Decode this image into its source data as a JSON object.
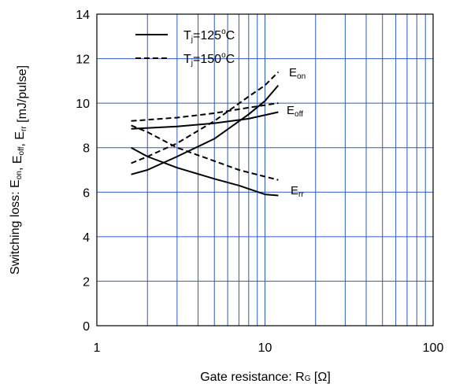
{
  "chart_data": {
    "type": "line",
    "xlabel": {
      "main": "Gate resistance: R",
      "sub": "G",
      "tail": " [Ω]"
    },
    "ylabel": {
      "parts": [
        {
          "t": "Switching loss: E",
          "s": "on"
        },
        {
          "t": ", E",
          "s": "off"
        },
        {
          "t": ", E",
          "s": "rr"
        },
        {
          "t": " [mJ/pulse]",
          "s": ""
        }
      ]
    },
    "x_scale": "log",
    "xlim": [
      1,
      100
    ],
    "ylim": [
      0,
      14
    ],
    "x_ticks": [
      "1",
      "10",
      "100"
    ],
    "y_ticks": [
      "0",
      "2",
      "4",
      "6",
      "8",
      "10",
      "12",
      "14"
    ],
    "grid": true,
    "grid_color": "#2d5bbf",
    "legend": [
      {
        "style": "solid",
        "prefix": "T",
        "sub": "j",
        "text": "=125",
        "sup": "o",
        "unit": "C"
      },
      {
        "style": "dashed",
        "prefix": "T",
        "sub": "j",
        "text": "=150",
        "sup": "o",
        "unit": "C"
      }
    ],
    "curve_labels": [
      {
        "main": "E",
        "sub": "on"
      },
      {
        "main": "E",
        "sub": "off"
      },
      {
        "main": "E",
        "sub": "rr"
      }
    ],
    "series": [
      {
        "quantity": "Eon",
        "tj": "125",
        "style": "solid",
        "x": [
          1.6,
          2,
          3,
          5,
          8,
          10,
          12
        ],
        "y": [
          6.8,
          7.0,
          7.6,
          8.4,
          9.5,
          10.1,
          10.8
        ]
      },
      {
        "quantity": "Eon",
        "tj": "150",
        "style": "dashed",
        "x": [
          1.6,
          2,
          3,
          5,
          8,
          10,
          12
        ],
        "y": [
          7.3,
          7.6,
          8.2,
          9.2,
          10.3,
          10.8,
          11.4
        ]
      },
      {
        "quantity": "Eoff",
        "tj": "125",
        "style": "solid",
        "x": [
          1.6,
          3,
          5,
          8,
          12
        ],
        "y": [
          8.85,
          8.95,
          9.1,
          9.3,
          9.6
        ]
      },
      {
        "quantity": "Eoff",
        "tj": "150",
        "style": "dashed",
        "x": [
          1.6,
          3,
          5,
          8,
          12
        ],
        "y": [
          9.2,
          9.35,
          9.55,
          9.8,
          10.0
        ]
      },
      {
        "quantity": "Err",
        "tj": "125",
        "style": "solid",
        "x": [
          1.6,
          2,
          3,
          5,
          7,
          10,
          12
        ],
        "y": [
          8.0,
          7.6,
          7.1,
          6.6,
          6.3,
          5.9,
          5.85
        ]
      },
      {
        "quantity": "Err",
        "tj": "150",
        "style": "dashed",
        "x": [
          1.6,
          2,
          3,
          5,
          7,
          10,
          12
        ],
        "y": [
          9.0,
          8.7,
          8.0,
          7.4,
          7.0,
          6.7,
          6.55
        ]
      }
    ]
  }
}
